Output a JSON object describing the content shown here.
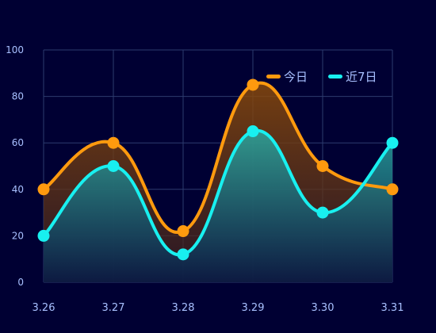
{
  "chart_data": {
    "type": "line",
    "categories": [
      "3.26",
      "3.27",
      "3.28",
      "3.29",
      "3.30",
      "3.31"
    ],
    "ylim": [
      0,
      100
    ],
    "yticks": [
      0,
      20,
      40,
      60,
      80,
      100
    ],
    "grid": true,
    "smooth": true,
    "legend": "top-right",
    "series": [
      {
        "name": "今日",
        "color": "#ff9a0e",
        "values": [
          40,
          60,
          22,
          85,
          50,
          40
        ]
      },
      {
        "name": "近7日",
        "color": "#18f0f0",
        "values": [
          20,
          50,
          12,
          65,
          30,
          60
        ]
      }
    ],
    "colors": {
      "background": "#000033",
      "grid": "#2d3b6e",
      "tick": "#a8c0ff"
    }
  }
}
